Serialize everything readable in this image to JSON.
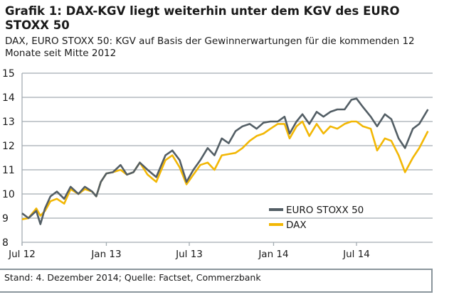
{
  "title": "Grafik 1: DAX-KGV liegt weiterhin unter dem KGV des EURO STOXX 50",
  "subtitle": "DAX, EURO STOXX 50: KGV auf Basis der Gewinnerwartungen für die kommenden 12 Monate seit Mitte 2012",
  "footer": "Stand: 4. Dezember 2014; Quelle: Factset, Commerzbank",
  "chart_data": {
    "type": "line",
    "title": "",
    "xlabel": "",
    "ylabel": "",
    "ylim": [
      8,
      15
    ],
    "yticks": [
      "8",
      "9",
      "10",
      "11",
      "12",
      "13",
      "14",
      "15"
    ],
    "xticks": [
      {
        "date": "2012-07-01",
        "label": "Jul 12"
      },
      {
        "date": "2013-01-01",
        "label": "Jan 13"
      },
      {
        "date": "2013-07-01",
        "label": "Jul 13"
      },
      {
        "date": "2014-01-01",
        "label": "Jan 14"
      },
      {
        "date": "2014-07-01",
        "label": "Jul 14"
      }
    ],
    "xlim": [
      "2012-07-01",
      "2014-12-10"
    ],
    "grid": "horizontal",
    "legend": "bottom-right",
    "x": [
      "2012-07-01",
      "2012-07-15",
      "2012-08-01",
      "2012-08-10",
      "2012-08-20",
      "2012-09-01",
      "2012-09-15",
      "2012-10-01",
      "2012-10-15",
      "2012-11-01",
      "2012-11-15",
      "2012-12-01",
      "2012-12-10",
      "2012-12-20",
      "2013-01-01",
      "2013-01-15",
      "2013-02-01",
      "2013-02-15",
      "2013-03-01",
      "2013-03-15",
      "2013-04-01",
      "2013-04-20",
      "2013-05-10",
      "2013-05-25",
      "2013-06-10",
      "2013-06-25",
      "2013-07-10",
      "2013-07-25",
      "2013-08-10",
      "2013-08-25",
      "2013-09-10",
      "2013-09-25",
      "2013-10-10",
      "2013-10-25",
      "2013-11-10",
      "2013-11-25",
      "2013-12-10",
      "2013-12-25",
      "2014-01-10",
      "2014-01-25",
      "2014-02-05",
      "2014-02-20",
      "2014-03-05",
      "2014-03-20",
      "2014-04-05",
      "2014-04-20",
      "2014-05-05",
      "2014-05-20",
      "2014-06-05",
      "2014-06-20",
      "2014-07-01",
      "2014-07-15",
      "2014-08-01",
      "2014-08-15",
      "2014-09-01",
      "2014-09-15",
      "2014-10-01",
      "2014-10-15",
      "2014-11-01",
      "2014-11-15",
      "2014-12-04"
    ],
    "series": [
      {
        "name": "EURO STOXX 50",
        "color": "#535e65",
        "values": [
          9.2,
          9.0,
          9.3,
          8.75,
          9.4,
          9.9,
          10.1,
          9.8,
          10.3,
          10.0,
          10.3,
          10.1,
          9.9,
          10.5,
          10.85,
          10.9,
          11.2,
          10.8,
          10.9,
          11.3,
          11.0,
          10.7,
          11.6,
          11.8,
          11.4,
          10.5,
          11.0,
          11.4,
          11.9,
          11.6,
          12.3,
          12.1,
          12.6,
          12.8,
          12.9,
          12.7,
          12.95,
          13.0,
          13.0,
          13.2,
          12.5,
          13.0,
          13.3,
          12.9,
          13.4,
          13.2,
          13.4,
          13.5,
          13.5,
          13.9,
          13.95,
          13.6,
          13.2,
          12.8,
          13.3,
          13.1,
          12.3,
          11.9,
          12.7,
          12.9,
          13.5
        ]
      },
      {
        "name": "DAX",
        "color": "#f2b705",
        "values": [
          8.95,
          9.0,
          9.4,
          9.1,
          9.3,
          9.7,
          9.8,
          9.6,
          10.2,
          10.0,
          10.2,
          10.1,
          9.9,
          10.5,
          10.85,
          10.9,
          11.0,
          10.8,
          10.9,
          11.3,
          10.8,
          10.5,
          11.4,
          11.6,
          11.1,
          10.4,
          10.8,
          11.2,
          11.3,
          11.0,
          11.6,
          11.65,
          11.7,
          11.9,
          12.2,
          12.4,
          12.5,
          12.7,
          12.9,
          12.9,
          12.3,
          12.8,
          13.0,
          12.4,
          12.9,
          12.5,
          12.8,
          12.7,
          12.9,
          13.0,
          13.0,
          12.8,
          12.7,
          11.8,
          12.3,
          12.2,
          11.6,
          10.9,
          11.5,
          11.9,
          12.6
        ]
      }
    ]
  }
}
